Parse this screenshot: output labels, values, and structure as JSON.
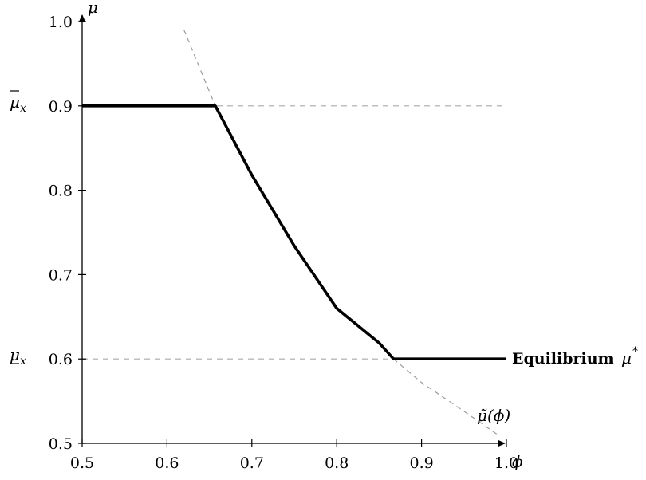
{
  "chart_data": {
    "type": "line",
    "title": "",
    "xlabel": "ϕ",
    "ylabel": "μ",
    "xlim": [
      0.5,
      1.0
    ],
    "ylim": [
      0.5,
      1.0
    ],
    "x_ticks": [
      "0.5",
      "0.6",
      "0.7",
      "0.8",
      "0.9",
      "1.0"
    ],
    "y_ticks": [
      "0.5",
      "0.6",
      "0.7",
      "0.8",
      "0.9",
      "1.0"
    ],
    "reference_levels": {
      "upper": {
        "value": 0.9,
        "label_base": "μ",
        "label_sub": "x"
      },
      "lower": {
        "value": 0.6,
        "label_base": "μ",
        "label_sub": "x"
      }
    },
    "series": [
      {
        "name": "Equilibrium μ*",
        "label_text": "Equilibrium",
        "label_math": "μ",
        "label_sup": "*",
        "style": "solid-bold",
        "x": [
          0.5,
          0.657,
          0.7,
          0.75,
          0.8,
          0.85,
          0.867,
          1.0
        ],
        "y": [
          0.9,
          0.9,
          0.818,
          0.734,
          0.66,
          0.619,
          0.6,
          0.6
        ]
      },
      {
        "name": "μ̃(ϕ)",
        "label_base": "μ̃(ϕ)",
        "style": "dashed",
        "x": [
          0.62,
          0.657,
          0.7,
          0.75,
          0.8,
          0.85,
          0.867,
          0.9,
          0.95,
          0.99
        ],
        "y": [
          0.99,
          0.9,
          0.818,
          0.734,
          0.66,
          0.619,
          0.6,
          0.572,
          0.538,
          0.51
        ]
      }
    ],
    "grid": false
  }
}
